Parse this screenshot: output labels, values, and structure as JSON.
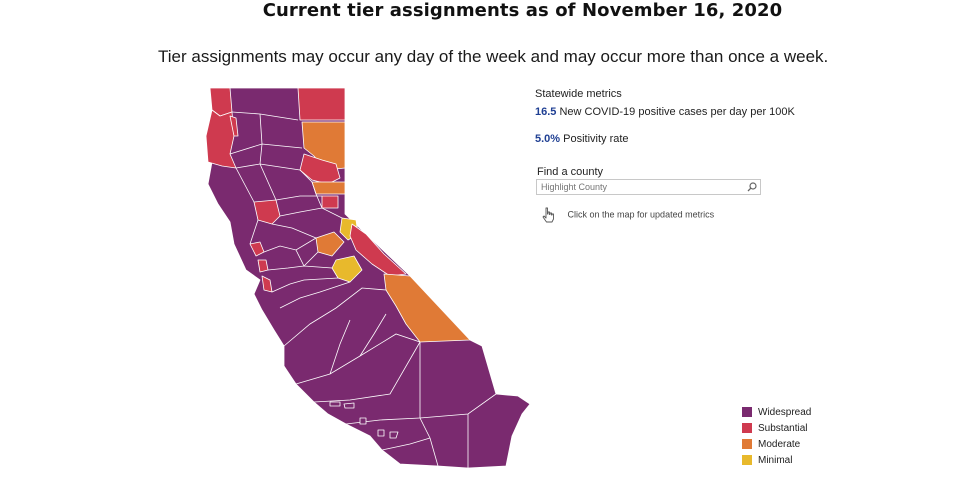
{
  "header": {
    "title": "Current tier assignments as of November 16, 2020",
    "subtitle": "Tier assignments may occur any day of the week and may occur more than once a week."
  },
  "metrics": {
    "title": "Statewide metrics",
    "cases_value": "16.5",
    "cases_label": "New COVID-19 positive cases per day per 100K",
    "positivity_value": "5.0%",
    "positivity_label": "Positivity rate"
  },
  "search": {
    "label": "Find a county",
    "placeholder": "Highlight County",
    "value": ""
  },
  "hint": {
    "text": "Click on the map for updated metrics"
  },
  "legend": {
    "items": [
      {
        "label": "Widespread",
        "color": "#7a2a6f"
      },
      {
        "label": "Substantial",
        "color": "#cf3a4f"
      },
      {
        "label": "Moderate",
        "color": "#e07a36"
      },
      {
        "label": "Minimal",
        "color": "#e8b92c"
      }
    ]
  },
  "colors": {
    "widespread": "#7a2a6f",
    "substantial": "#cf3a4f",
    "moderate": "#e07a36",
    "minimal": "#e8b92c",
    "metric_value": "#1f3f93"
  }
}
